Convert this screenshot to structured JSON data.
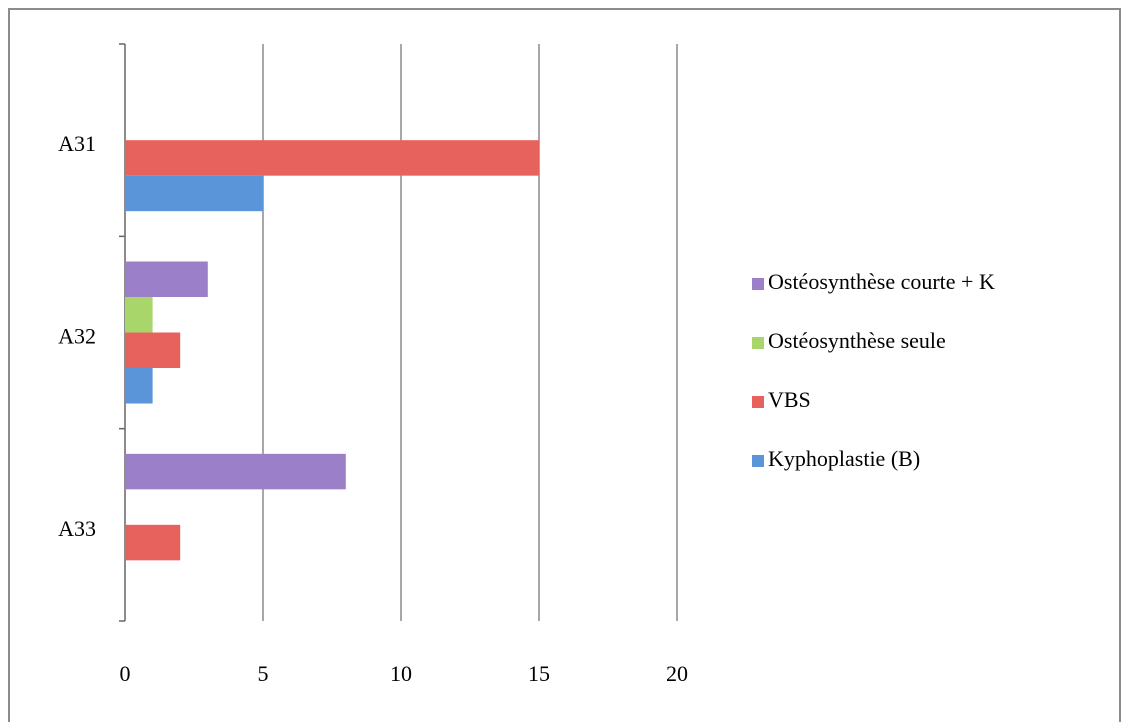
{
  "chart_data": {
    "type": "hbar",
    "categories": [
      "A31",
      "A32",
      "A33"
    ],
    "series": [
      {
        "name": "Ostéosynthèse courte + K",
        "color": "#9b80c9",
        "values": [
          0,
          3,
          8
        ]
      },
      {
        "name": "Ostéosynthèse seule",
        "color": "#a9d66b",
        "values": [
          0,
          1,
          0
        ]
      },
      {
        "name": "VBS",
        "color": "#e8625d",
        "values": [
          15,
          2,
          2
        ]
      },
      {
        "name": "Kyphoplastie (B)",
        "color": "#5b95d9",
        "values": [
          5,
          1,
          0
        ]
      }
    ],
    "xlim": [
      0,
      20
    ],
    "xticks": [
      0,
      5,
      10,
      15,
      20
    ],
    "grid": true,
    "legend": "right"
  }
}
